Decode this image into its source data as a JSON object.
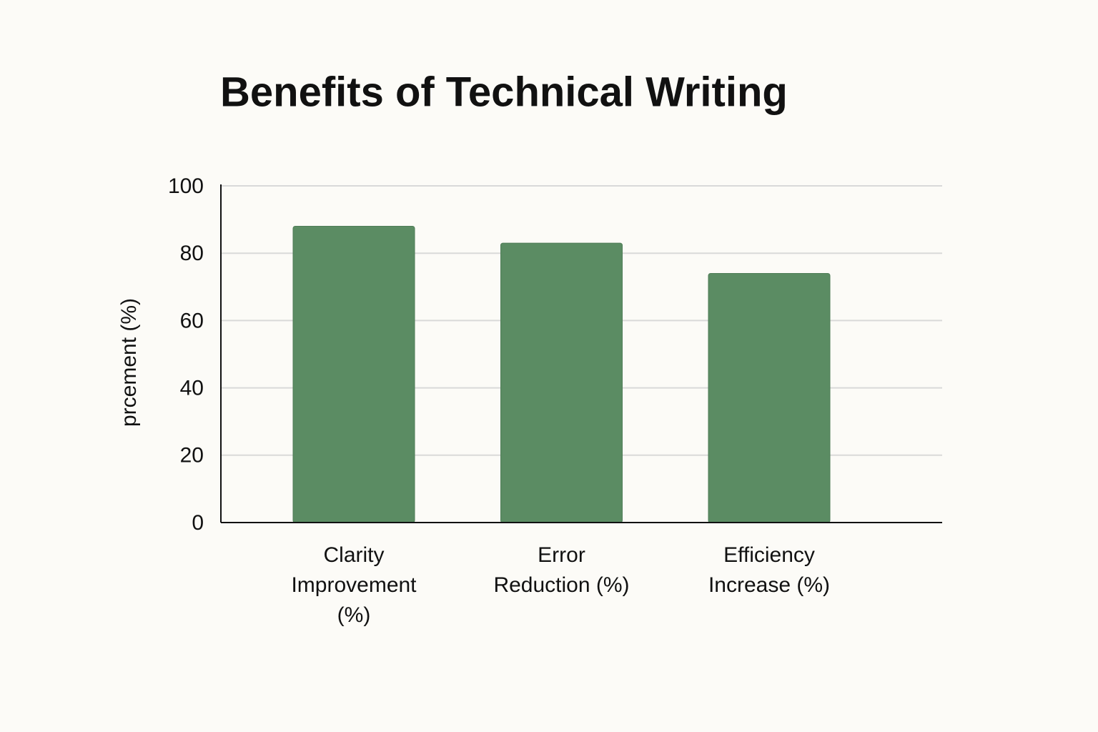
{
  "chart_data": {
    "type": "bar",
    "title": "Benefits of Technical Writing",
    "y_label": "prcement (%)",
    "categories": [
      "Clarity Improvement (%)",
      "Error Reduction (%)",
      "Efficiency Increase (%)"
    ],
    "values": [
      88,
      83,
      74
    ],
    "color": "#5b8c63",
    "ylim": [
      0,
      100
    ],
    "yticks": [
      0,
      20,
      40,
      60,
      80,
      100
    ],
    "grid": true
  }
}
